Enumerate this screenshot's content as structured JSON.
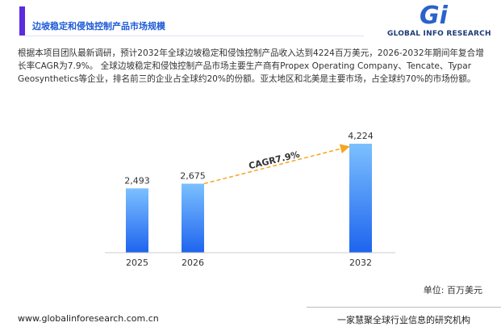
{
  "header": {
    "title": "边坡稳定和侵蚀控制产品市场规模"
  },
  "logo": {
    "mark": "Gi",
    "text": "GLOBAL INFO RESEARCH"
  },
  "description": "根据本项目团队最新调研，预计2032年全球边坡稳定和侵蚀控制产品收入达到4224百万美元，2026-2032年期间年复合增长率CAGR为7.9%。 全球边坡稳定和侵蚀控制产品市场主要生产商有Propex Operating Company、Tencate、Typar Geosynthetics等企业，排名前三的企业占全球约20%的份额。亚太地区和北美是主要市场，占全球约70%的市场份额。",
  "chart_data": {
    "type": "bar",
    "categories": [
      "2025",
      "2026",
      "2032"
    ],
    "values": [
      2493,
      2675,
      4224
    ],
    "value_labels": [
      "2,493",
      "2,675",
      "4,224"
    ],
    "color": "#2f80f5",
    "annotation": "CAGR7.9%",
    "unit": "单位: 百万美元"
  },
  "footer": {
    "url": "www.globalinforesearch.com.cn",
    "slogan": "一家慧聚全球行业信息的研究机构"
  }
}
